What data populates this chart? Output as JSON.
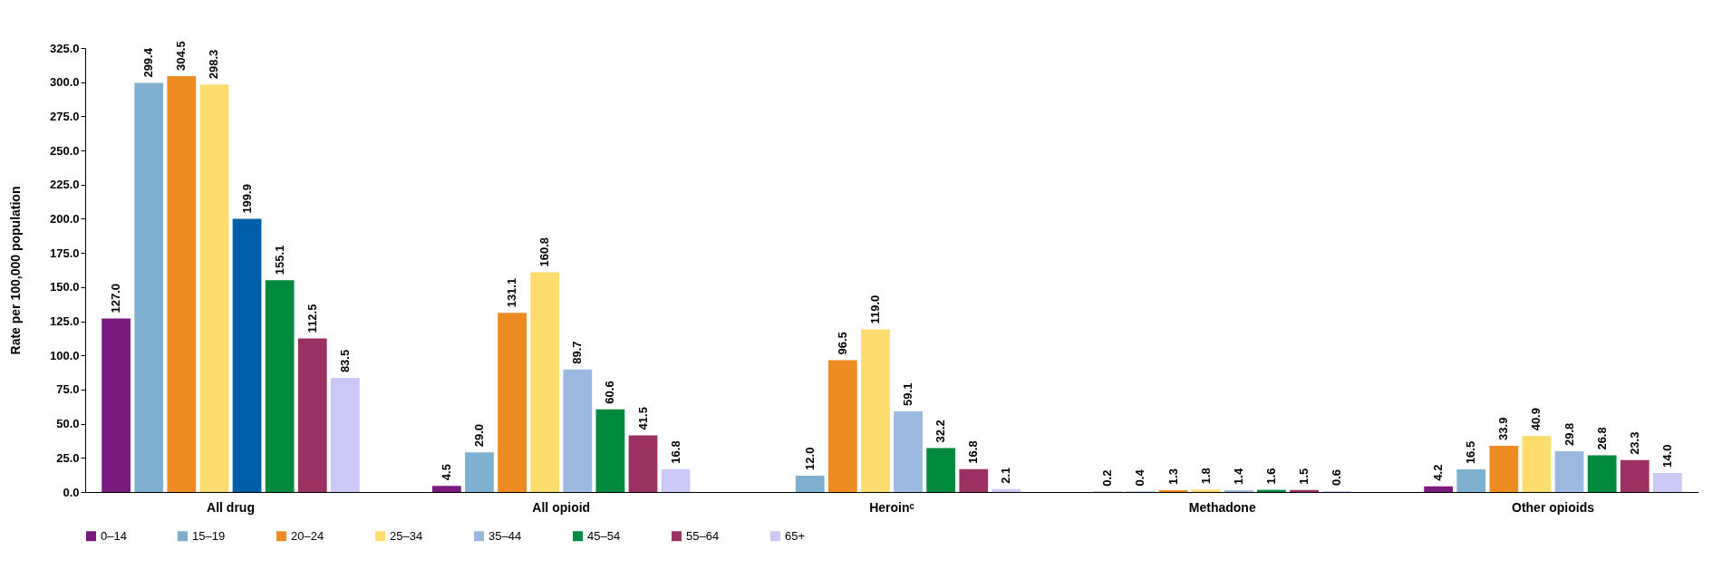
{
  "chart_data": {
    "type": "bar",
    "ylabel": "Rate per 100,000 population",
    "categories": [
      "All drug",
      "All opioid",
      "Heroinᶜ",
      "Methadone",
      "Other opioids"
    ],
    "series": [
      {
        "name": "0–14",
        "color": "#7b1a7e",
        "values": [
          127.0,
          4.5,
          null,
          0.2,
          4.2
        ],
        "value_labels": [
          "127.0",
          "4.5",
          null,
          "0.2",
          "4.2"
        ]
      },
      {
        "name": "15–19",
        "color": "#7fb0cf",
        "values": [
          299.4,
          29.0,
          12.0,
          0.4,
          16.5
        ],
        "value_labels": [
          "299.4",
          "29.0",
          "12.0",
          "0.4",
          "16.5"
        ]
      },
      {
        "name": "20–24",
        "color": "#ee8a22",
        "values": [
          304.5,
          131.1,
          96.5,
          1.3,
          33.9
        ],
        "value_labels": [
          "304.5",
          "131.1",
          "96.5",
          "1.3",
          "33.9"
        ]
      },
      {
        "name": "25–34",
        "color": "#ffdc6e",
        "values": [
          298.3,
          160.8,
          119.0,
          1.8,
          40.9
        ],
        "value_labels": [
          "298.3",
          "160.8",
          "119.0",
          "1.8",
          "40.9"
        ]
      },
      {
        "name": "35–44",
        "color": "#9bb8de",
        "colors": [
          "#005ea8",
          "#9bb8de",
          "#9bb8de",
          "#9bb8de",
          "#9bb8de"
        ],
        "values": [
          199.9,
          89.7,
          59.1,
          1.4,
          29.8
        ],
        "value_labels": [
          "199.9",
          "89.7",
          "59.1",
          "1.4",
          "29.8"
        ]
      },
      {
        "name": "45–54",
        "color": "#008a3e",
        "values": [
          155.1,
          60.6,
          32.2,
          1.6,
          26.8
        ],
        "value_labels": [
          "155.1",
          "60.6",
          "32.2",
          "1.6",
          "26.8"
        ]
      },
      {
        "name": "55–64",
        "color": "#9b3062",
        "values": [
          112.5,
          41.5,
          16.8,
          1.5,
          23.3
        ],
        "value_labels": [
          "112.5",
          "41.5",
          "16.8",
          "1.5",
          "23.3"
        ]
      },
      {
        "name": "65+",
        "color": "#cbc8f5",
        "values": [
          83.5,
          16.8,
          2.1,
          0.6,
          14.0
        ],
        "value_labels": [
          "83.5",
          "16.8",
          "2.1",
          "0.6",
          "14.0"
        ]
      }
    ],
    "ylim": [
      0,
      325
    ],
    "yticks": [
      {
        "value": 0,
        "label": "0.0"
      },
      {
        "value": 25,
        "label": "25.0"
      },
      {
        "value": 50,
        "label": "50.0"
      },
      {
        "value": 75,
        "label": "75.0"
      },
      {
        "value": 100,
        "label": "100.0"
      },
      {
        "value": 125,
        "label": "125.0"
      },
      {
        "value": 150,
        "label": "150.0"
      },
      {
        "value": 175,
        "label": "175.0"
      },
      {
        "value": 200,
        "label": "200.0"
      },
      {
        "value": 225,
        "label": "225.0"
      },
      {
        "value": 250,
        "label": "250.0"
      },
      {
        "value": 275,
        "label": "275.0"
      },
      {
        "value": 300,
        "label": "300.0"
      },
      {
        "value": 325,
        "label": "325.0"
      }
    ],
    "legend": "bottom",
    "grid": false
  }
}
